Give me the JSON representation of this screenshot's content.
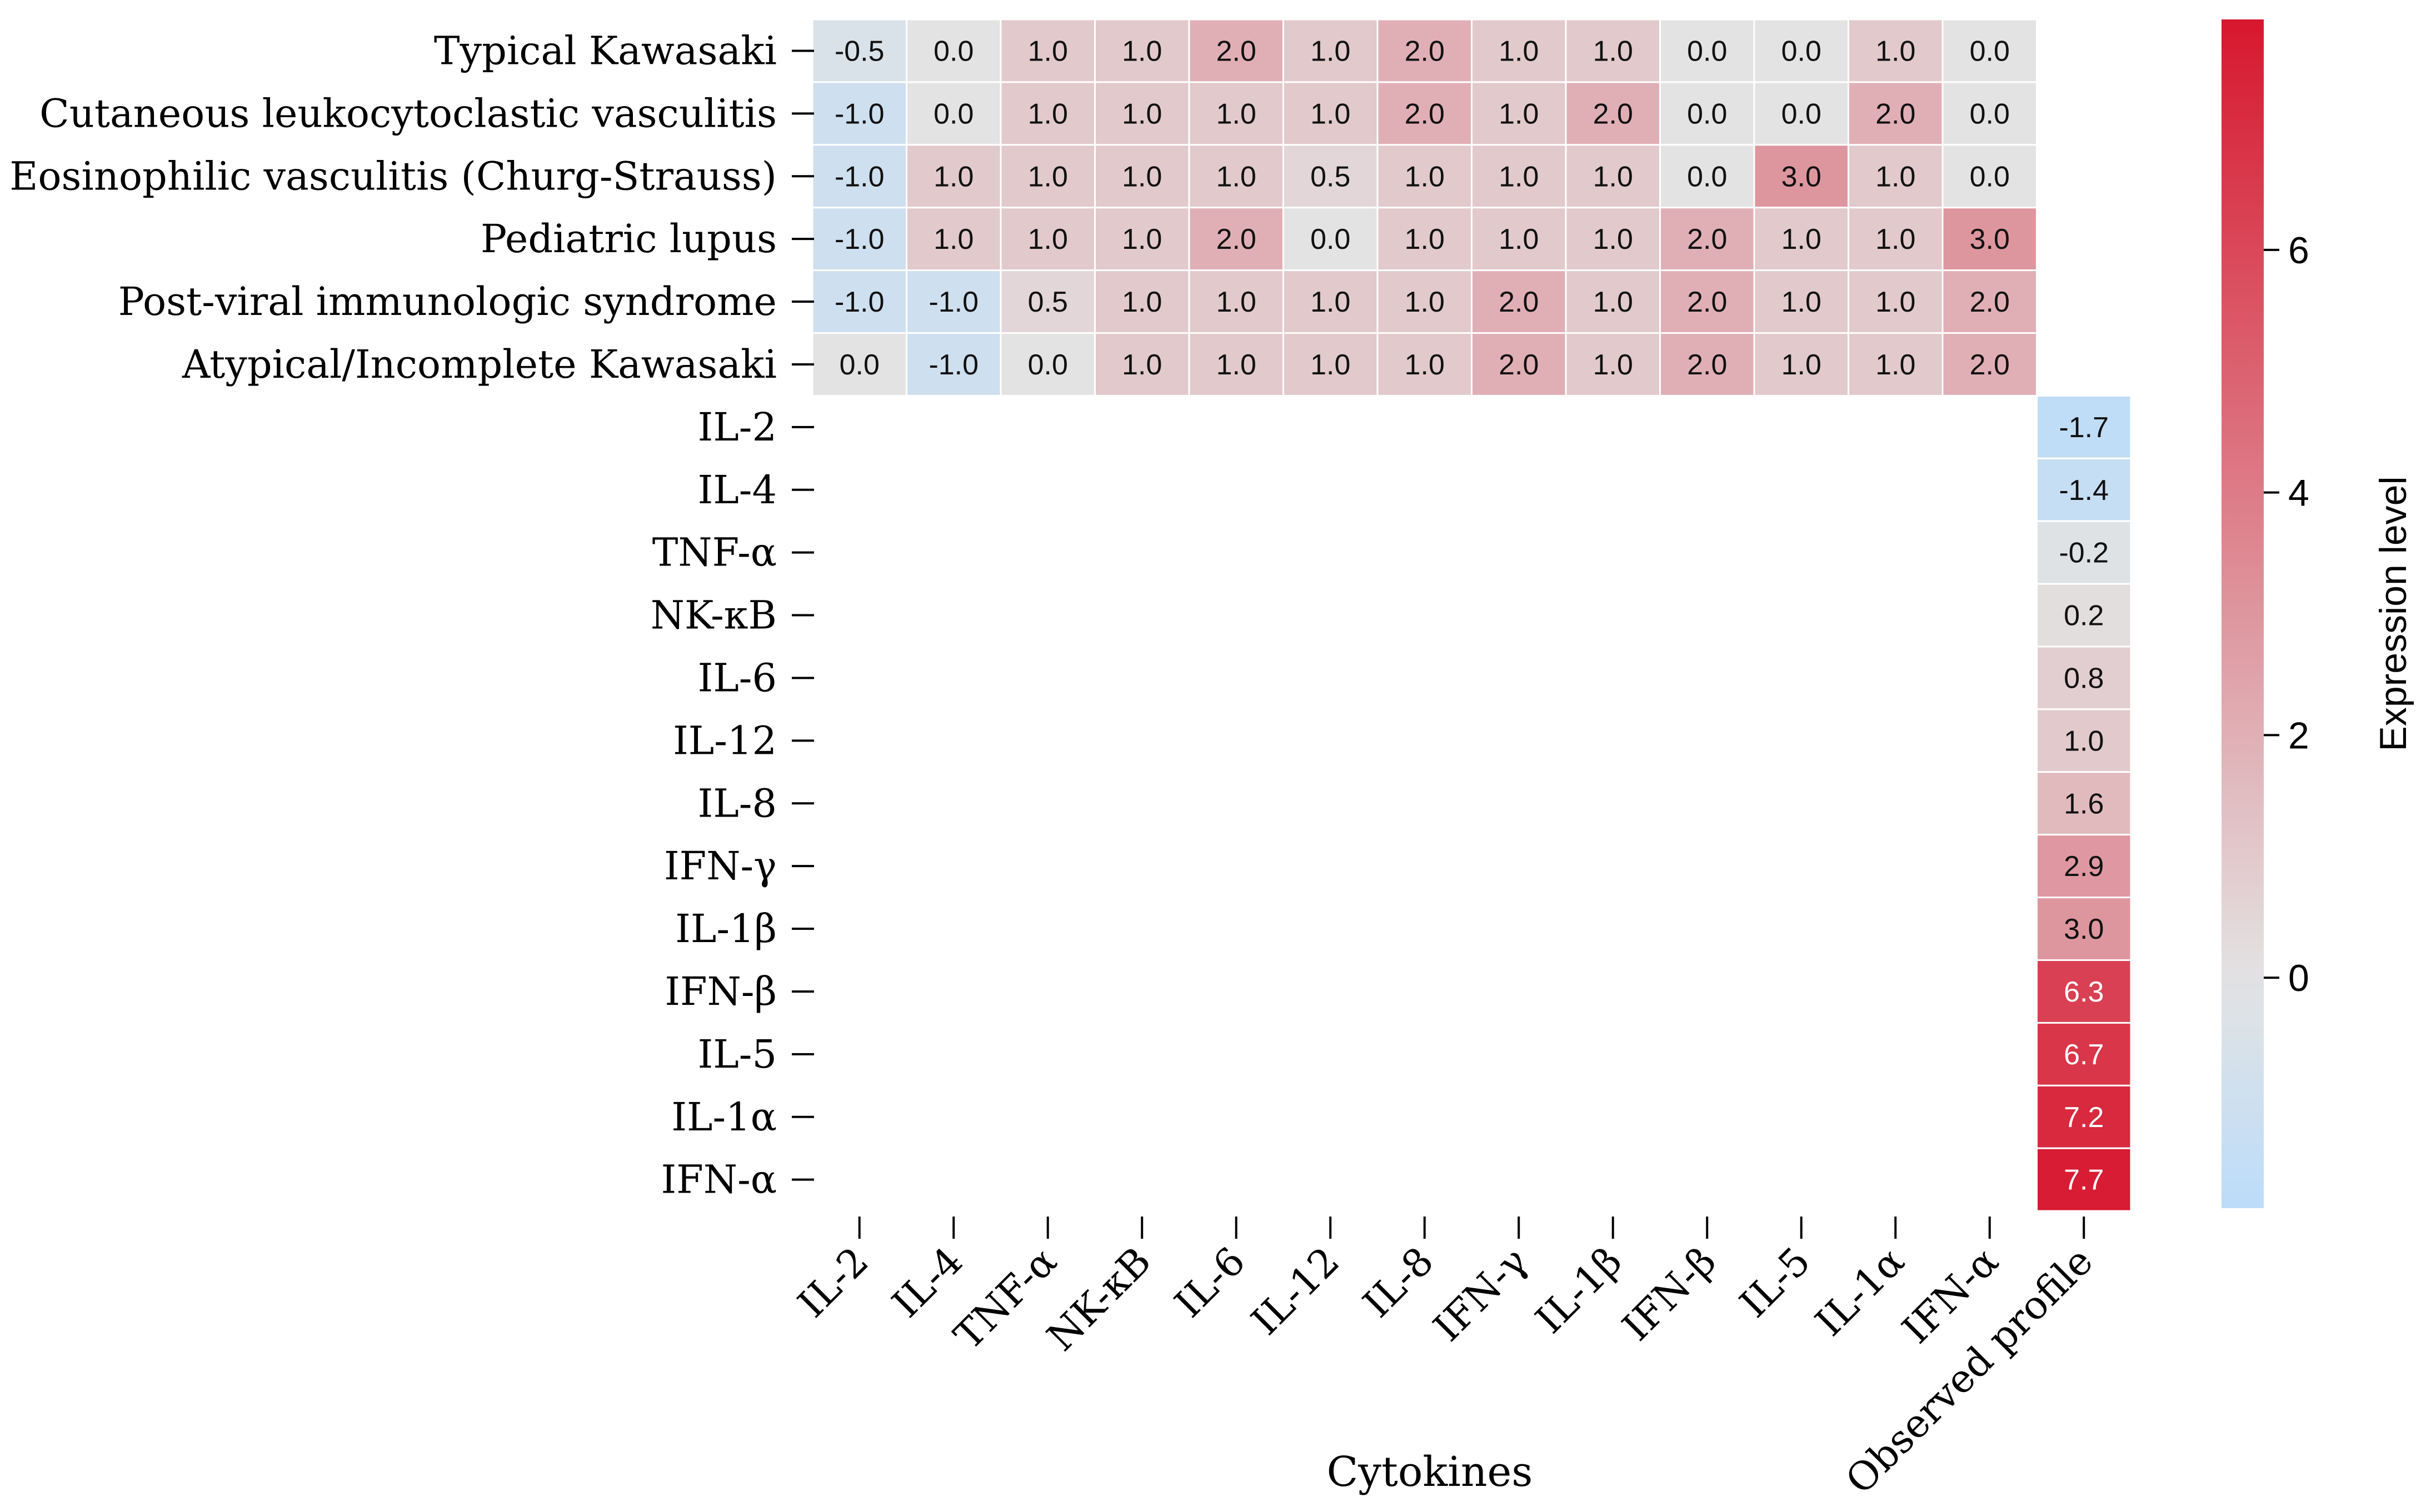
{
  "chart_data": {
    "type": "heatmap",
    "title": "",
    "xlabel": "Cytokines",
    "colorbar_label": "Expression level",
    "colorbar_ticks": [
      0,
      2,
      4,
      6
    ],
    "color_range": [
      -1.9,
      7.9
    ],
    "columns": [
      "IL-2",
      "IL-4",
      "TNF-α",
      "NK-κB",
      "IL-6",
      "IL-12",
      "IL-8",
      "IFN-γ",
      "IL-1β",
      "IFN-β",
      "IL-5",
      "IL-1α",
      "IFN-α",
      "Observed profile"
    ],
    "conditions": [
      {
        "label": "Typical Kawasaki",
        "values": [
          -0.5,
          0.0,
          1.0,
          1.0,
          2.0,
          1.0,
          2.0,
          1.0,
          1.0,
          0.0,
          0.0,
          1.0,
          0.0
        ]
      },
      {
        "label": "Cutaneous leukocytoclastic vasculitis",
        "values": [
          -1.0,
          0.0,
          1.0,
          1.0,
          1.0,
          1.0,
          2.0,
          1.0,
          2.0,
          0.0,
          0.0,
          2.0,
          0.0
        ]
      },
      {
        "label": "Eosinophilic vasculitis (Churg-Strauss)",
        "values": [
          -1.0,
          1.0,
          1.0,
          1.0,
          1.0,
          0.5,
          1.0,
          1.0,
          1.0,
          0.0,
          3.0,
          1.0,
          0.0
        ]
      },
      {
        "label": "Pediatric lupus",
        "values": [
          -1.0,
          1.0,
          1.0,
          1.0,
          2.0,
          0.0,
          1.0,
          1.0,
          1.0,
          2.0,
          1.0,
          1.0,
          3.0
        ]
      },
      {
        "label": "Post-viral immunologic syndrome",
        "values": [
          -1.0,
          -1.0,
          0.5,
          1.0,
          1.0,
          1.0,
          1.0,
          2.0,
          1.0,
          2.0,
          1.0,
          1.0,
          2.0
        ]
      },
      {
        "label": "Atypical/Incomplete Kawasaki",
        "values": [
          0.0,
          -1.0,
          0.0,
          1.0,
          1.0,
          1.0,
          1.0,
          2.0,
          1.0,
          2.0,
          1.0,
          1.0,
          2.0
        ]
      }
    ],
    "observed_profile": [
      {
        "label": "IL-2",
        "value": -1.7
      },
      {
        "label": "IL-4",
        "value": -1.4
      },
      {
        "label": "TNF-α",
        "value": -0.2
      },
      {
        "label": "NK-κB",
        "value": 0.2
      },
      {
        "label": "IL-6",
        "value": 0.8
      },
      {
        "label": "IL-12",
        "value": 1.0
      },
      {
        "label": "IL-8",
        "value": 1.6
      },
      {
        "label": "IFN-γ",
        "value": 2.9
      },
      {
        "label": "IL-1β",
        "value": 3.0
      },
      {
        "label": "IFN-β",
        "value": 6.3
      },
      {
        "label": "IL-5",
        "value": 6.7
      },
      {
        "label": "IL-1α",
        "value": 7.2
      },
      {
        "label": "IFN-α",
        "value": 7.7
      }
    ],
    "colors": {
      "low": "#bcdcfa",
      "mid": "#e3e3e3",
      "high": "#d7172e",
      "grid": "#ffffff"
    }
  }
}
